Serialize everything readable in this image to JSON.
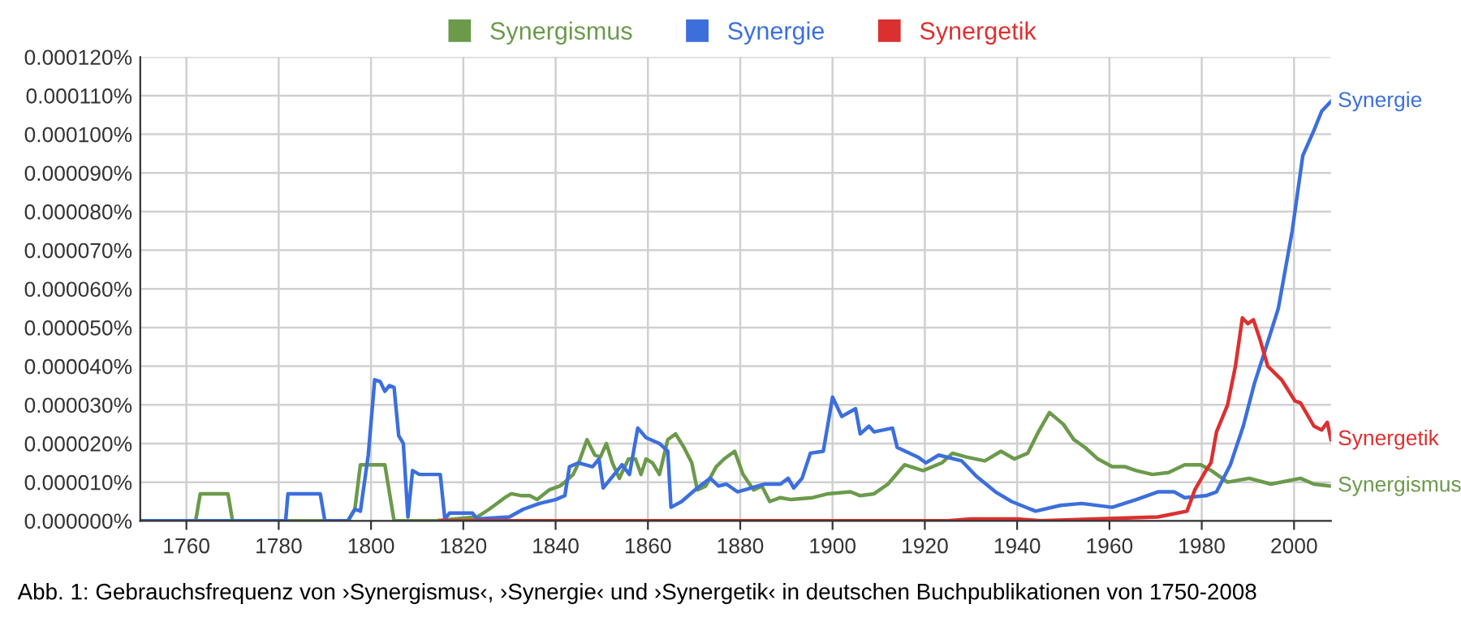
{
  "chart_data": {
    "type": "line",
    "xlim": [
      1750,
      2008
    ],
    "xticks": [
      1760,
      1780,
      1800,
      1820,
      1840,
      1860,
      1880,
      1900,
      1920,
      1940,
      1960,
      1980,
      2000
    ],
    "ylim": [
      0,
      0.00012
    ],
    "yticks": [
      {
        "value": 0,
        "label": "0.000000%"
      },
      {
        "value": 1e-05,
        "label": "0.000010%"
      },
      {
        "value": 2e-05,
        "label": "0.000020%"
      },
      {
        "value": 3e-05,
        "label": "0.000030%"
      },
      {
        "value": 4e-05,
        "label": "0.000040%"
      },
      {
        "value": 5e-05,
        "label": "0.000050%"
      },
      {
        "value": 6e-05,
        "label": "0.000060%"
      },
      {
        "value": 7e-05,
        "label": "0.000070%"
      },
      {
        "value": 8e-05,
        "label": "0.000080%"
      },
      {
        "value": 9e-05,
        "label": "0.000090%"
      },
      {
        "value": 0.0001,
        "label": "0.000100%"
      },
      {
        "value": 0.00011,
        "label": "0.000110%"
      },
      {
        "value": 0.00012,
        "label": "0.000120%"
      }
    ],
    "grid": true,
    "legend": "top",
    "marker": "none",
    "line_style": "solid",
    "annotations": [
      "Abb. 1: Gebrauchsfrequenz von ›Synergismus‹, ›Synergie‹ und ›Synergetik‹ in deutschen Buchpublikationen von 1750-2008"
    ],
    "series": [
      {
        "name": "Synergismus",
        "color": "#6b9a4b",
        "x": [
          1750,
          1762,
          1763,
          1769,
          1770,
          1795,
          1796.5,
          1797.7,
          1803,
          1805,
          1814,
          1823,
          1825.6,
          1829,
          1830.4,
          1832.7,
          1834.4,
          1836,
          1838.6,
          1840.9,
          1842,
          1843.8,
          1845,
          1846.8,
          1848.5,
          1849.7,
          1851,
          1852.3,
          1853.8,
          1855.8,
          1857.3,
          1858.5,
          1859.6,
          1861,
          1862.5,
          1864.3,
          1866,
          1867.8,
          1869.5,
          1870.7,
          1872.5,
          1874.8,
          1876.5,
          1878.8,
          1880.6,
          1882.9,
          1884.7,
          1886.4,
          1888.7,
          1891,
          1895.7,
          1899,
          1903.9,
          1906,
          1909,
          1912,
          1915.6,
          1919.6,
          1923.7,
          1926,
          1929,
          1933,
          1936.5,
          1939.4,
          1942.3,
          1944.6,
          1947,
          1950,
          1952.3,
          1954.7,
          1957.5,
          1960.6,
          1963.4,
          1965.8,
          1969.3,
          1972.8,
          1976.3,
          1979.8,
          1982.1,
          1985.6,
          1990.3,
          1995,
          2001.4,
          2004.3,
          2008
        ],
        "values": [
          0,
          0,
          7e-06,
          7e-06,
          0,
          0,
          3e-06,
          1.45e-05,
          1.45e-05,
          0,
          0,
          1e-06,
          3e-06,
          6e-06,
          7e-06,
          6.5e-06,
          6.5e-06,
          5.5e-06,
          8e-06,
          9e-06,
          1e-05,
          1.2e-05,
          1.5e-05,
          2.1e-05,
          1.7e-05,
          1.65e-05,
          2e-05,
          1.5e-05,
          1.1e-05,
          1.6e-05,
          1.6e-05,
          1.2e-05,
          1.6e-05,
          1.5e-05,
          1.2e-05,
          2.1e-05,
          2.25e-05,
          1.9e-05,
          1.5e-05,
          8e-06,
          9e-06,
          1.4e-05,
          1.6e-05,
          1.8e-05,
          1.2e-05,
          8e-06,
          9e-06,
          5e-06,
          6e-06,
          5.5e-06,
          6e-06,
          7e-06,
          7.5e-06,
          6.5e-06,
          7e-06,
          9.5e-06,
          1.45e-05,
          1.3e-05,
          1.5e-05,
          1.75e-05,
          1.65e-05,
          1.55e-05,
          1.8e-05,
          1.6e-05,
          1.75e-05,
          2.3e-05,
          2.8e-05,
          2.5e-05,
          2.1e-05,
          1.9e-05,
          1.6e-05,
          1.4e-05,
          1.4e-05,
          1.3e-05,
          1.2e-05,
          1.25e-05,
          1.45e-05,
          1.45e-05,
          1.3e-05,
          1e-05,
          1.1e-05,
          9.5e-06,
          1.1e-05,
          9.5e-06,
          9e-06
        ]
      },
      {
        "name": "Synergie",
        "color": "#3c6fdc",
        "x": [
          1750,
          1781.5,
          1782,
          1789,
          1790,
          1795,
          1796.5,
          1797.7,
          1799.4,
          1800.8,
          1802,
          1803,
          1804,
          1805,
          1806,
          1807,
          1808,
          1809,
          1810.5,
          1815,
          1816,
          1817,
          1822,
          1823,
          1830,
          1833,
          1836.5,
          1840,
          1842,
          1843,
          1845,
          1848,
          1849.4,
          1850.3,
          1852,
          1854.4,
          1856,
          1857.8,
          1859.6,
          1862.5,
          1864.3,
          1865,
          1867.3,
          1870.7,
          1873.5,
          1875.3,
          1877,
          1879.4,
          1882.3,
          1885.2,
          1888.7,
          1890.4,
          1891.6,
          1893.4,
          1895.2,
          1898,
          1900,
          1902,
          1905,
          1906,
          1907.9,
          1909,
          1913,
          1914,
          1918.5,
          1920.2,
          1923,
          1928,
          1931.2,
          1935.3,
          1938.8,
          1944,
          1949.4,
          1954,
          1960.6,
          1965.8,
          1970.5,
          1974,
          1976.3,
          1980.9,
          1983.2,
          1986.2,
          1989,
          1991.4,
          1993.7,
          1996.6,
          1999.6,
          2001.9,
          2004.3,
          2006,
          2008
        ],
        "values": [
          0,
          0,
          7e-06,
          7e-06,
          0,
          0,
          3e-06,
          2.5e-06,
          1.7e-05,
          3.65e-05,
          3.6e-05,
          3.35e-05,
          3.5e-05,
          3.45e-05,
          2.2e-05,
          2e-05,
          1e-06,
          1.3e-05,
          1.2e-05,
          1.2e-05,
          5e-07,
          2e-06,
          2e-06,
          5e-07,
          1e-06,
          3e-06,
          4.5e-06,
          5.5e-06,
          6.5e-06,
          1.4e-05,
          1.5e-05,
          1.4e-05,
          1.6e-05,
          8.5e-06,
          1.1e-05,
          1.45e-05,
          1.2e-05,
          2.4e-05,
          2.15e-05,
          2e-05,
          1.8e-05,
          3.5e-06,
          5e-06,
          8.5e-06,
          1.1e-05,
          9e-06,
          9.5e-06,
          7.5e-06,
          8.5e-06,
          9.5e-06,
          9.5e-06,
          1.1e-05,
          8.5e-06,
          1.1e-05,
          1.75e-05,
          1.8e-05,
          3.2e-05,
          2.7e-05,
          2.9e-05,
          2.25e-05,
          2.45e-05,
          2.3e-05,
          2.4e-05,
          1.9e-05,
          1.65e-05,
          1.5e-05,
          1.7e-05,
          1.55e-05,
          1.15e-05,
          7.5e-06,
          5e-06,
          2.5e-06,
          4e-06,
          4.5e-06,
          3.5e-06,
          5.5e-06,
          7.5e-06,
          7.5e-06,
          6e-06,
          6.5e-06,
          7.5e-06,
          1.45e-05,
          2.45e-05,
          3.55e-05,
          4.4e-05,
          5.5e-05,
          7.5e-05,
          9.45e-05,
          0.000101,
          0.000106,
          0.0001085
        ]
      },
      {
        "name": "Synergetik",
        "color": "#dc3030",
        "x": [
          1815,
          1925,
          1930,
          1940,
          1945,
          1970.5,
          1976.8,
          1978.5,
          1980.9,
          1982,
          1983.2,
          1985.6,
          1987.3,
          1988.8,
          1990,
          1991.2,
          1992.6,
          1994.3,
          1997.3,
          2000.2,
          2001.4,
          2004.3,
          2006,
          2007.2,
          2008
        ],
        "values": [
          0,
          0,
          5e-07,
          5e-07,
          0,
          1e-06,
          2.5e-06,
          8e-06,
          1.3e-05,
          1.5e-05,
          2.3e-05,
          3e-05,
          4e-05,
          5.25e-05,
          5.1e-05,
          5.2e-05,
          4.7e-05,
          4e-05,
          3.65e-05,
          3.1e-05,
          3.05e-05,
          2.45e-05,
          2.35e-05,
          2.55e-05,
          2.1e-05
        ]
      }
    ]
  }
}
